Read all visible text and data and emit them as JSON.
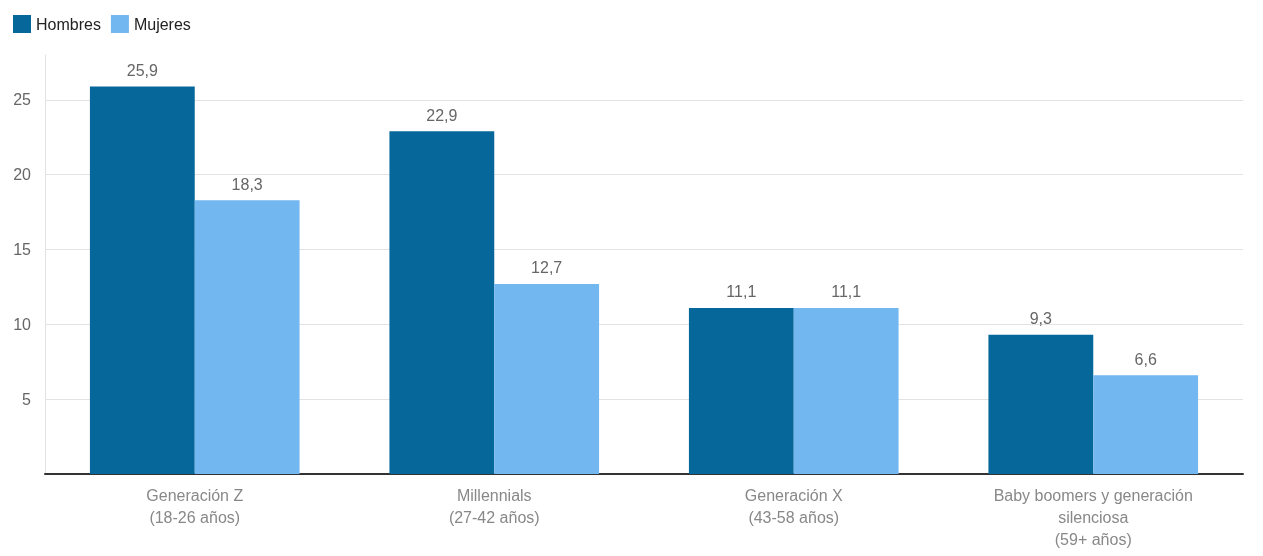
{
  "chart_data": {
    "type": "bar",
    "categories": [
      "Generación Z\n(18-26 años)",
      "Millennials\n(27-42 años)",
      "Generación X\n(43-58 años)",
      "Baby boomers y generación\nsilenciosa\n(59+ años)"
    ],
    "series": [
      {
        "name": "Hombres",
        "color": "#06679a",
        "values": [
          25.9,
          22.9,
          11.1,
          9.3
        ],
        "value_labels": [
          "25,9",
          "22,9",
          "11,1",
          "9,3"
        ]
      },
      {
        "name": "Mujeres",
        "color": "#72b7ef",
        "values": [
          18.3,
          12.7,
          11.1,
          6.6
        ],
        "value_labels": [
          "18,3",
          "12,7",
          "11,1",
          "6,6"
        ]
      }
    ],
    "ylim": [
      0,
      28
    ],
    "yticks": [
      {
        "value": 0,
        "label": null
      },
      5,
      10,
      15,
      20,
      25
    ],
    "grid": "y",
    "legend": "top left"
  }
}
